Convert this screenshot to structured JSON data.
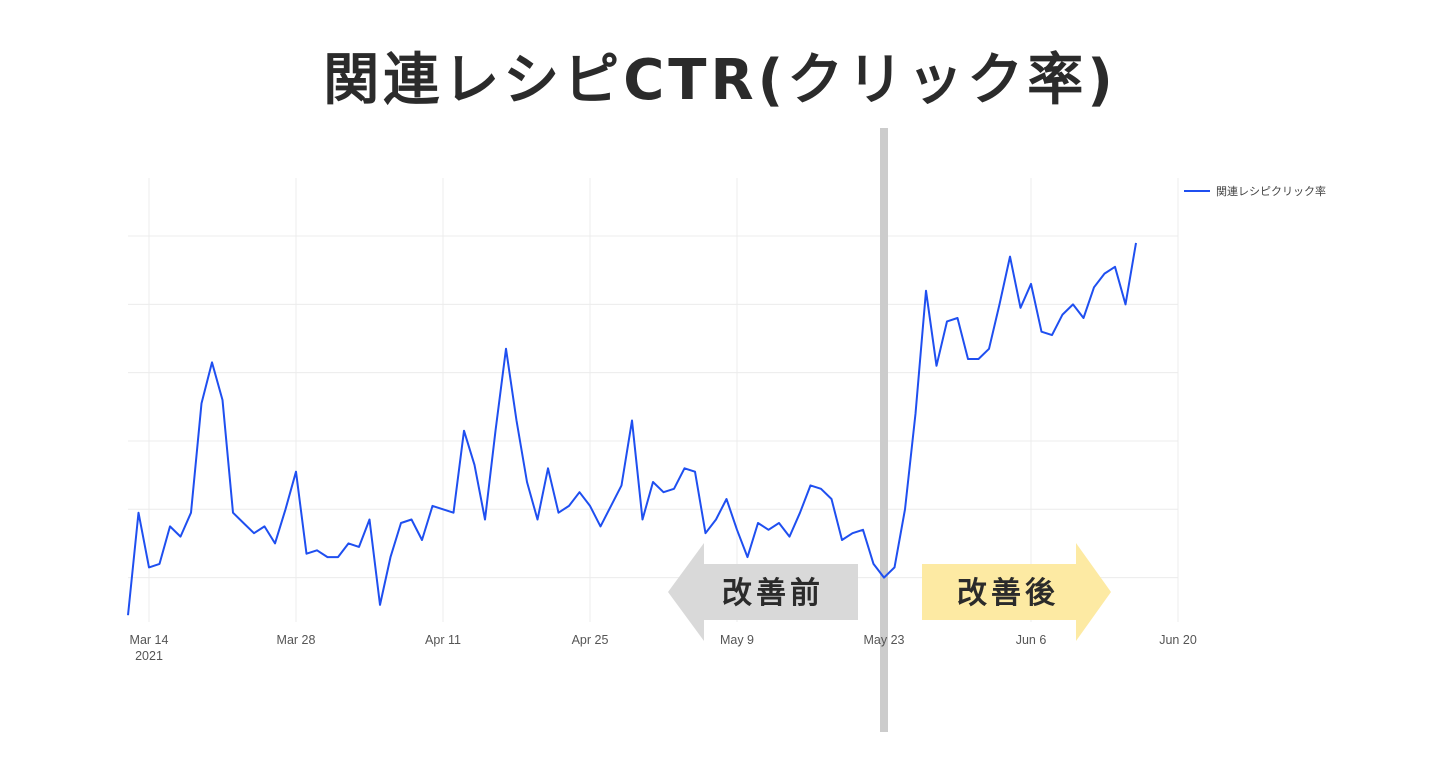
{
  "title": "関連レシピCTR(クリック率)",
  "annotations": {
    "before": "改善前",
    "after": "改善後"
  },
  "colors": {
    "line": "#1f4ff0",
    "grid": "#ececec",
    "divider": "#cccccc",
    "before_arrow": "#d9d9d9",
    "after_arrow": "#fdeaa3"
  },
  "chart_data": {
    "type": "line",
    "title": "関連レシピCTR(クリック率)",
    "xlabel": "",
    "ylabel": "",
    "xlim": [
      "2021-03-12",
      "2021-06-20"
    ],
    "ylim": [
      0,
      6.5
    ],
    "grid": true,
    "legend_position": "top-right",
    "x_ticks": [
      {
        "date": "2021-03-14",
        "label": "Mar 14",
        "sublabel": "2021"
      },
      {
        "date": "2021-03-28",
        "label": "Mar 28",
        "sublabel": ""
      },
      {
        "date": "2021-04-11",
        "label": "Apr 11",
        "sublabel": ""
      },
      {
        "date": "2021-04-25",
        "label": "Apr 25",
        "sublabel": ""
      },
      {
        "date": "2021-05-09",
        "label": "May 9",
        "sublabel": ""
      },
      {
        "date": "2021-05-23",
        "label": "May 23",
        "sublabel": ""
      },
      {
        "date": "2021-06-06",
        "label": "Jun 6",
        "sublabel": ""
      },
      {
        "date": "2021-06-20",
        "label": "Jun 20",
        "sublabel": ""
      }
    ],
    "y_gridlines": [
      0.65,
      1.65,
      2.65,
      3.65,
      4.65,
      5.65
    ],
    "divider_date": "2021-05-23",
    "series": [
      {
        "name": "関連レシピクリック率",
        "start_date": "2021-03-12",
        "values": [
          0.1,
          1.6,
          0.8,
          0.85,
          1.4,
          1.25,
          1.6,
          3.2,
          3.8,
          3.25,
          1.6,
          1.45,
          1.3,
          1.4,
          1.15,
          1.65,
          2.2,
          1.0,
          1.05,
          0.95,
          0.95,
          1.15,
          1.1,
          1.5,
          0.25,
          0.95,
          1.45,
          1.5,
          1.2,
          1.7,
          1.65,
          1.6,
          2.8,
          2.3,
          1.5,
          2.8,
          4.0,
          2.95,
          2.05,
          1.5,
          2.25,
          1.6,
          1.7,
          1.9,
          1.7,
          1.4,
          1.7,
          2.0,
          2.95,
          1.5,
          2.05,
          1.9,
          1.95,
          2.25,
          2.2,
          1.3,
          1.5,
          1.8,
          1.35,
          0.95,
          1.45,
          1.35,
          1.45,
          1.25,
          1.6,
          2.0,
          1.95,
          1.8,
          1.2,
          1.3,
          1.35,
          0.85,
          0.65,
          0.8,
          1.65,
          3.05,
          4.85,
          3.75,
          4.4,
          4.45,
          3.85,
          3.85,
          4.0,
          4.65,
          5.35,
          4.6,
          4.95,
          4.25,
          4.2,
          4.5,
          4.65,
          4.45,
          4.9,
          5.1,
          5.2,
          4.65,
          5.55
        ]
      }
    ]
  }
}
